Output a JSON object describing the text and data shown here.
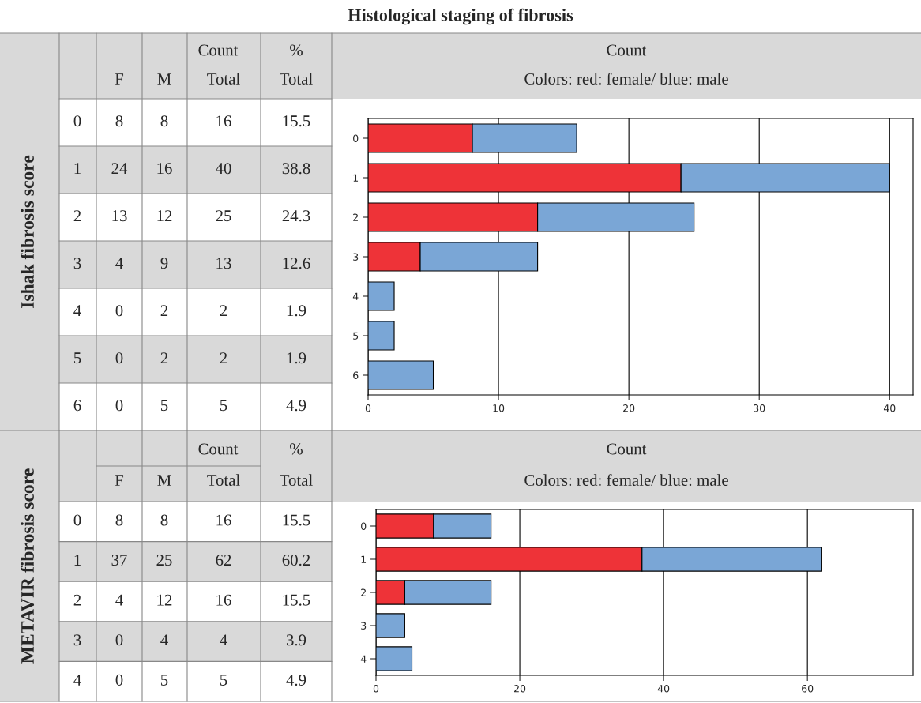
{
  "chart_data": [
    {
      "type": "bar",
      "orientation": "horizontal",
      "stacked": true,
      "title": "Histological staging of fibrosis",
      "xlabel": "Count",
      "subtitle": "Colors: red: female/ blue: male",
      "ylabel": "Ishak fibrosis score",
      "categories": [
        "0",
        "1",
        "2",
        "3",
        "4",
        "5",
        "6"
      ],
      "series": [
        {
          "color": "#ee3338",
          "values": [
            8,
            24,
            13,
            4,
            0,
            0,
            0
          ]
        },
        {
          "color": "#7aa6d6",
          "values": [
            8,
            16,
            12,
            9,
            2,
            2,
            5
          ]
        }
      ],
      "annotations": [
        "Count",
        "F",
        "M",
        "Total",
        "%",
        "Total",
        "8",
        "8",
        "16",
        "15.5",
        "24",
        "16",
        "40",
        "38.8",
        "13",
        "12",
        "25",
        "24.3",
        "4",
        "9",
        "13",
        "12.6",
        "0",
        "2",
        "2",
        "1.9",
        "0",
        "2",
        "2",
        "1.9",
        "0",
        "5",
        "5",
        "4.9"
      ],
      "xlim": [
        0,
        41.8
      ],
      "xticks": [
        0,
        10,
        20,
        30,
        40
      ],
      "grid": "x"
    },
    {
      "type": "bar",
      "orientation": "horizontal",
      "stacked": true,
      "xlabel": "Count",
      "subtitle": "Colors: red: female/ blue: male",
      "ylabel": "METAVIR fibrosis score",
      "categories": [
        "0",
        "1",
        "2",
        "3",
        "4"
      ],
      "series": [
        {
          "color": "#ee3338",
          "values": [
            8,
            37,
            4,
            0,
            0
          ]
        },
        {
          "color": "#7aa6d6",
          "values": [
            8,
            25,
            12,
            4,
            5
          ]
        }
      ],
      "annotations": [
        "Count",
        "F",
        "M",
        "Total",
        "%",
        "Total",
        "8",
        "8",
        "16",
        "15.5",
        "37",
        "25",
        "62",
        "60.2",
        "4",
        "12",
        "16",
        "15.5",
        "0",
        "4",
        "4",
        "3.9",
        "0",
        "5",
        "5",
        "4.9"
      ],
      "xlim": [
        0,
        74.7
      ],
      "xticks": [
        0,
        20,
        40,
        60
      ],
      "grid": "x"
    }
  ]
}
